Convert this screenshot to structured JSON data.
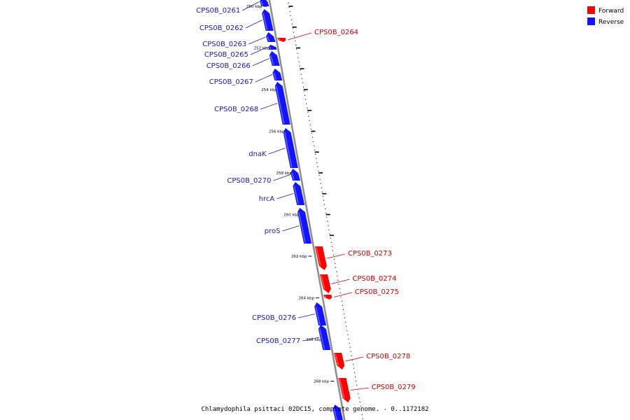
{
  "caption": "Chlamydophila psittaci 02DC15, complete genome. - 0..1172182",
  "colors": {
    "forward": "#ff0000",
    "reverse": "#1414ff",
    "backbone": "#8c8c8c",
    "label_forward": "#cc0000",
    "label_reverse": "#1a1ab0"
  },
  "legend": [
    {
      "name": "Forward",
      "color": "#ff0000"
    },
    {
      "name": "Reverse",
      "color": "#1414ff"
    }
  ],
  "scale_labels": [
    "250 kbp",
    "252 kbp",
    "254 kbp",
    "256 kbp",
    "258 kbp",
    "260 kbp",
    "262 kbp",
    "264 kbp",
    "266 kbp",
    "268 kbp"
  ],
  "genes": [
    {
      "name": "CPS0B_0261",
      "strand": "reverse"
    },
    {
      "name": "CPS0B_0262",
      "strand": "reverse"
    },
    {
      "name": "CPS0B_0263",
      "strand": "reverse"
    },
    {
      "name": "CPS0B_0264",
      "strand": "forward"
    },
    {
      "name": "CPS0B_0265",
      "strand": "reverse"
    },
    {
      "name": "CPS0B_0266",
      "strand": "reverse"
    },
    {
      "name": "CPS0B_0267",
      "strand": "reverse"
    },
    {
      "name": "CPS0B_0268",
      "strand": "reverse"
    },
    {
      "name": "dnaK",
      "strand": "reverse"
    },
    {
      "name": "CPS0B_0270",
      "strand": "reverse"
    },
    {
      "name": "hrcA",
      "strand": "reverse"
    },
    {
      "name": "proS",
      "strand": "reverse"
    },
    {
      "name": "CPS0B_0273",
      "strand": "forward"
    },
    {
      "name": "CPS0B_0274",
      "strand": "forward"
    },
    {
      "name": "CPS0B_0275",
      "strand": "forward"
    },
    {
      "name": "CPS0B_0276",
      "strand": "reverse"
    },
    {
      "name": "CPS0B_0277",
      "strand": "reverse"
    },
    {
      "name": "CPS0B_0278",
      "strand": "forward"
    },
    {
      "name": "CPS0B_0279",
      "strand": "forward"
    }
  ]
}
